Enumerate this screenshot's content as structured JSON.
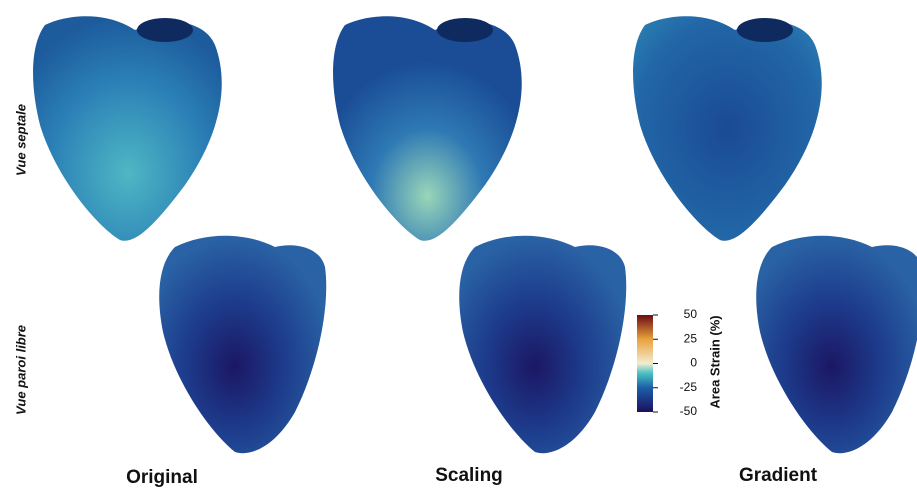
{
  "row_labels": [
    "Vue septale",
    "Vue paroi libre"
  ],
  "column_labels": [
    "Original",
    "Scaling",
    "Gradient"
  ],
  "colorbar": {
    "label": "Area Strain (%)",
    "lim": [
      -50,
      50
    ],
    "ticks": [
      50,
      25,
      0,
      -25,
      -50
    ]
  }
}
